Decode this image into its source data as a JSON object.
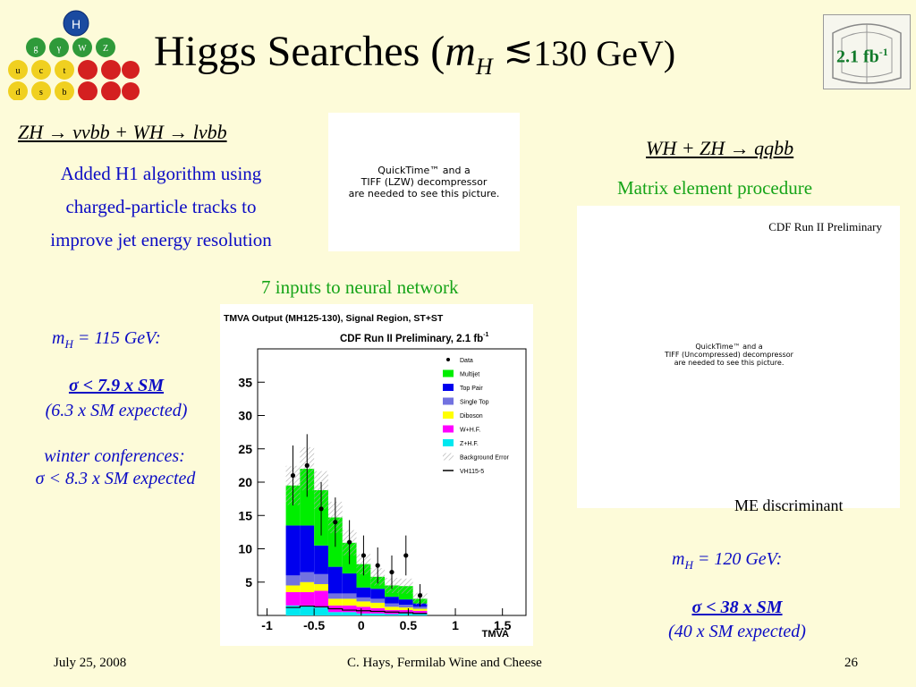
{
  "title": {
    "main": "Higgs Searches (",
    "m": "m",
    "sub": "H",
    "sim": "≲",
    "rest": "130 GeV)"
  },
  "logo_particles": [
    "H",
    "g",
    "γ",
    "W",
    "Z",
    "u",
    "c",
    "t",
    "d",
    "s",
    "b"
  ],
  "badge": {
    "text": "2.1 fb",
    "sup": "-1"
  },
  "left": {
    "heading": "ZH → ννbb + WH → lνbb",
    "desc": [
      "Added H1 algorithm using",
      "charged-particle tracks to",
      "improve jet energy resolution"
    ],
    "mh_m": "m",
    "mh_sub": "H",
    "mh_rest": " = 115 GeV:",
    "limit": "σ < 7.9 x SM",
    "expected": "(6.3 x SM expected)",
    "winter": "winter conferences:",
    "winter_limit": "σ < 8.3 x SM expected"
  },
  "nn_label": "7 inputs to neural network",
  "qt_small": [
    "QuickTime™ and a",
    "TIFF (LZW) decompressor",
    "are needed to see this picture."
  ],
  "right": {
    "heading": "WH + ZH → qqbb",
    "method": "Matrix element procedure",
    "cdf": "CDF Run II Preliminary",
    "qt_big": [
      "QuickTime™ and a",
      "TIFF (Uncompressed) decompressor",
      "are needed to see this picture."
    ],
    "me_disc": "ME discriminant",
    "mh_m": "m",
    "mh_sub": "H",
    "mh_rest": " = 120 GeV:",
    "limit": "σ < 38 x SM",
    "expected": "(40 x SM expected)"
  },
  "plot": {
    "title": "TMVA Output (MH125-130), Signal Region, ST+ST",
    "prelim": "CDF Run II Preliminary, 2.1 fb",
    "prelim_sup": "-1",
    "xlabel": "TMVA",
    "legend": [
      "Data",
      "Multijet",
      "Top Pair",
      "Single Top",
      "Diboson",
      "W+H.F.",
      "Z+H.F.",
      "Background Error",
      "VH115-5"
    ]
  },
  "chart_data": {
    "type": "bar",
    "title": "TMVA Output (MH125-130), Signal Region, ST+ST",
    "xlabel": "TMVA",
    "ylabel": "",
    "xlim": [
      -1.1,
      1.75
    ],
    "ylim": [
      0,
      40
    ],
    "x_ticks": [
      -1,
      -0.5,
      0,
      0.5,
      1,
      1.5
    ],
    "y_ticks": [
      5,
      10,
      15,
      20,
      25,
      30,
      35
    ],
    "bin_edges": [
      -0.8,
      -0.65,
      -0.5,
      -0.35,
      -0.2,
      -0.05,
      0.1,
      0.25,
      0.4,
      0.55,
      0.7
    ],
    "series": [
      {
        "name": "Z+H.F.",
        "color": "#00e8f0",
        "values": [
          1.5,
          1.5,
          1.2,
          0.5,
          0.5,
          0.3,
          0.3,
          0.2,
          0.3,
          0.2
        ]
      },
      {
        "name": "W+H.F.",
        "color": "#ff00ff",
        "values": [
          2.0,
          2.0,
          2.5,
          1.0,
          1.0,
          1.0,
          0.8,
          0.6,
          0.5,
          0.5
        ]
      },
      {
        "name": "Diboson",
        "color": "#ffff00",
        "values": [
          1.0,
          1.5,
          1.0,
          1.0,
          1.0,
          0.8,
          0.8,
          0.5,
          0.4,
          0.3
        ]
      },
      {
        "name": "Single Top",
        "color": "#7272e0",
        "values": [
          1.5,
          1.5,
          1.5,
          0.8,
          0.8,
          0.6,
          0.6,
          0.5,
          0.4,
          0.3
        ]
      },
      {
        "name": "Top Pair",
        "color": "#0000ee",
        "values": [
          7.5,
          7.0,
          4.3,
          4.0,
          3.0,
          1.5,
          1.5,
          1.0,
          0.8,
          0.5
        ]
      },
      {
        "name": "Multijet",
        "color": "#00ee00",
        "values": [
          6.0,
          8.5,
          8.3,
          7.4,
          4.6,
          3.5,
          1.8,
          1.7,
          2.0,
          0.7
        ]
      }
    ],
    "data_points": {
      "name": "Data",
      "x": [
        -0.725,
        -0.575,
        -0.425,
        -0.275,
        -0.125,
        0.025,
        0.175,
        0.325,
        0.475,
        0.625
      ],
      "y": [
        21,
        22.5,
        16,
        14,
        11,
        9,
        7.5,
        6.5,
        9,
        3
      ],
      "err": [
        4.5,
        4.7,
        4.0,
        3.7,
        3.3,
        3.0,
        2.7,
        2.5,
        3.0,
        1.7
      ]
    }
  },
  "footer": {
    "date": "July 25, 2008",
    "center": "C. Hays, Fermilab Wine and Cheese",
    "page": "26"
  }
}
